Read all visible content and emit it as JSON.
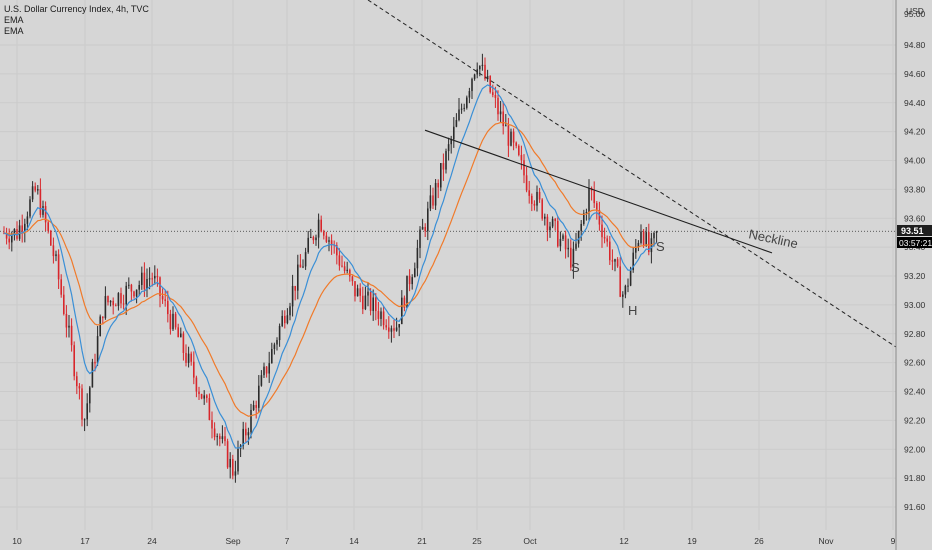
{
  "legend": {
    "title": "U.S. Dollar Currency Index, 4h, TVC",
    "ema1": "EMA",
    "ema2": "EMA"
  },
  "axis": {
    "currency": "USD",
    "top_partial": "95.00",
    "last_price": "93.51",
    "countdown": "03:57:21"
  },
  "colors": {
    "background": "#d6d6d6",
    "up": "#2b2b2b",
    "down": "#d8262b",
    "ema_fast": "#3a8fd6",
    "ema_slow": "#f07a2a",
    "lines": "#1f1f1f",
    "price_tag": "#1f1f1f",
    "countdown_tag": "#000000"
  },
  "annotations": {
    "neckline": "Neckline",
    "left_shoulder": "S",
    "head": "H",
    "right_shoulder": "S"
  },
  "chart_data": {
    "type": "candlestick",
    "title": "U.S. Dollar Currency Index, 4h, TVC",
    "ylim": [
      91.45,
      95.1
    ],
    "y_ticks": [
      "94.80",
      "94.60",
      "94.40",
      "94.20",
      "94.00",
      "93.80",
      "93.60",
      "93.40",
      "93.20",
      "93.00",
      "92.80",
      "92.60",
      "92.40",
      "92.20",
      "92.00",
      "91.80",
      "91.60"
    ],
    "x_ticks": [
      "10",
      "17",
      "24",
      "Sep",
      "7",
      "14",
      "21",
      "25",
      "Oct",
      "12",
      "19",
      "26",
      "Nov",
      "9"
    ],
    "last_price": 93.51,
    "price_path_keypoints": [
      {
        "x": "10",
        "y": 93.5
      },
      {
        "x": "Aug 12",
        "y": 93.8
      },
      {
        "x": "Aug 14",
        "y": 93.3
      },
      {
        "x": "Aug 17",
        "y": 92.2
      },
      {
        "x": "Aug 19",
        "y": 93.0
      },
      {
        "x": "24",
        "y": 93.2
      },
      {
        "x": "Aug 26",
        "y": 92.9
      },
      {
        "x": "Sep",
        "y": 91.85
      },
      {
        "x": "7",
        "y": 93.0
      },
      {
        "x": "Sep 10",
        "y": 93.6
      },
      {
        "x": "14",
        "y": 93.1
      },
      {
        "x": "Sep 18",
        "y": 92.85
      },
      {
        "x": "21",
        "y": 93.5
      },
      {
        "x": "25",
        "y": 94.7
      },
      {
        "x": "Oct 1",
        "y": 93.8
      },
      {
        "x": "Oct 6",
        "y": 93.3
      },
      {
        "x": "Oct 8",
        "y": 93.8
      },
      {
        "x": "12",
        "y": 93.05
      },
      {
        "x": "Oct 14",
        "y": 93.55
      },
      {
        "x": "Oct 15",
        "y": 93.35
      },
      {
        "x": "Oct 16",
        "y": 93.51
      }
    ],
    "series": [
      {
        "name": "EMA",
        "values": [
          93.45,
          93.4,
          92.8,
          93.1,
          93.3,
          92.4,
          92.9,
          93.3,
          92.95,
          93.2,
          94.3,
          93.85,
          93.6,
          93.5
        ]
      },
      {
        "name": "EMA",
        "values": [
          93.45,
          93.45,
          93.0,
          93.05,
          93.2,
          92.6,
          92.8,
          93.15,
          93.0,
          93.15,
          94.0,
          93.85,
          93.6,
          93.55
        ]
      }
    ]
  }
}
